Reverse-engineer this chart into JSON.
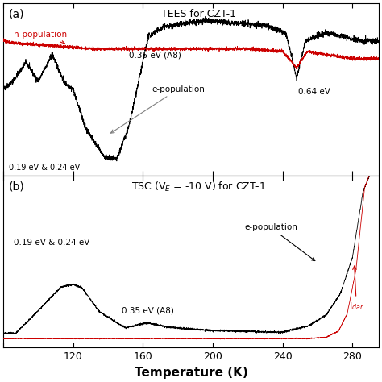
{
  "title_a": "TEES for CZT-1",
  "title_b": "TSC (V$_E$ = -10 V) for CZT-1",
  "xlabel": "Temperature (K)",
  "xmin": 80,
  "xmax": 295,
  "xticks": [
    80,
    120,
    160,
    200,
    240,
    280
  ],
  "xticklabels": [
    "",
    "120",
    "160",
    "200",
    "240",
    "280"
  ],
  "black_color": "#000000",
  "red_color": "#cc0000"
}
